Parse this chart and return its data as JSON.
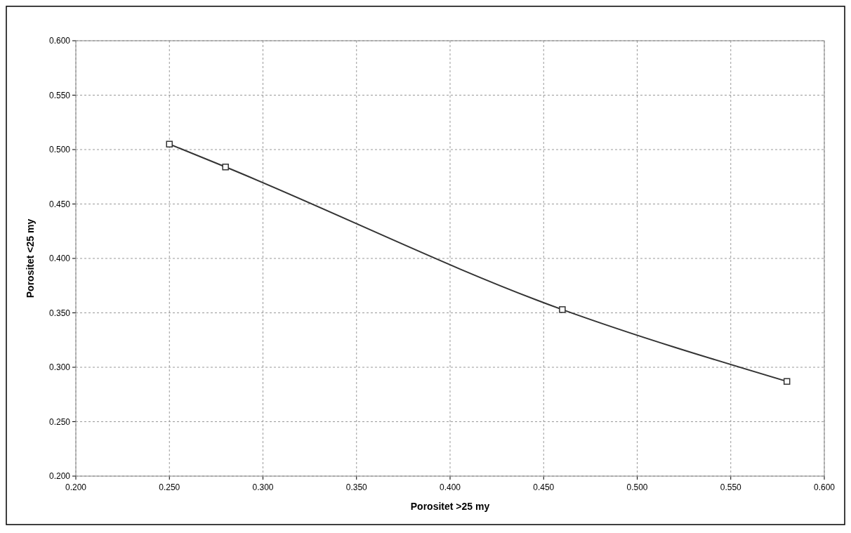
{
  "chart_data": {
    "type": "line",
    "xlabel": "Porositet >25 my",
    "ylabel": "Porositet <25 my",
    "x": [
      0.25,
      0.28,
      0.46,
      0.58
    ],
    "series": [
      {
        "color": "#333333",
        "values": [
          0.505,
          0.484,
          0.353,
          0.287
        ]
      }
    ],
    "xlim": [
      0.2,
      0.6
    ],
    "ylim": [
      0.2,
      0.6
    ],
    "xticks": [
      {
        "value": 0.2,
        "label": "0.200"
      },
      {
        "value": 0.25,
        "label": "0.250"
      },
      {
        "value": 0.3,
        "label": "0.300"
      },
      {
        "value": 0.35,
        "label": "0.350"
      },
      {
        "value": 0.4,
        "label": "0.400"
      },
      {
        "value": 0.45,
        "label": "0.450"
      },
      {
        "value": 0.5,
        "label": "0.500"
      },
      {
        "value": 0.55,
        "label": "0.550"
      },
      {
        "value": 0.6,
        "label": "0.600"
      }
    ],
    "yticks": [
      {
        "value": 0.2,
        "label": "0.200"
      },
      {
        "value": 0.25,
        "label": "0.250"
      },
      {
        "value": 0.3,
        "label": "0.300"
      },
      {
        "value": 0.35,
        "label": "0.350"
      },
      {
        "value": 0.4,
        "label": "0.400"
      },
      {
        "value": 0.45,
        "label": "0.450"
      },
      {
        "value": 0.5,
        "label": "0.500"
      },
      {
        "value": 0.55,
        "label": "0.550"
      },
      {
        "value": 0.6,
        "label": "0.600"
      }
    ],
    "grid": true,
    "marker": "square",
    "line_style": "solid"
  }
}
